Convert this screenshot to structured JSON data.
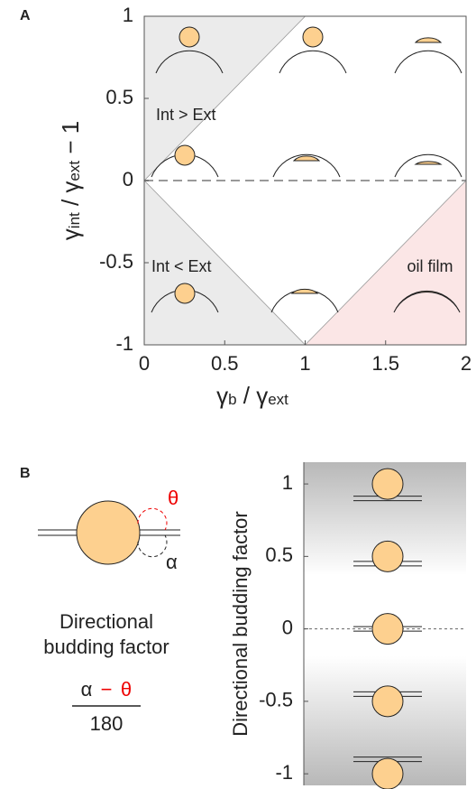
{
  "panel_a": {
    "label": "A",
    "xlabel": [
      "γ",
      "b",
      " / γ",
      "ext"
    ],
    "ylabel": [
      "γ",
      "int",
      " / γ",
      "ext",
      "  − 1"
    ],
    "xlim": [
      0,
      2
    ],
    "xticks": [
      0,
      0.5,
      1,
      1.5,
      2
    ],
    "ylim": [
      -1,
      1
    ],
    "yticks": [
      1,
      0.5,
      0,
      -0.5,
      -1
    ],
    "regions": [
      "Int > Ext",
      "Int < Ext",
      "oil film"
    ]
  },
  "panel_b": {
    "label": "B",
    "theta": "θ",
    "alpha": "α",
    "caption": [
      "Directional",
      "budding factor"
    ],
    "formula": {
      "left": "α",
      "minus": "−",
      "right": "θ",
      "denominator": "180"
    },
    "ylabel": "Directional budding factor",
    "ylim": [
      -1.08,
      1.15
    ],
    "yticks": [
      1,
      0.5,
      0,
      -0.5,
      -1
    ]
  }
}
